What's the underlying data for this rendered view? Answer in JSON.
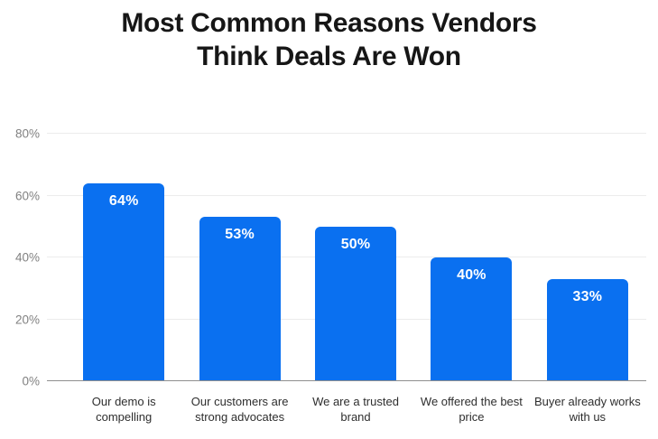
{
  "chart_data": {
    "type": "bar",
    "title": "Most Common Reasons Vendors Think Deals Are Won",
    "title_lines": [
      "Most Common Reasons Vendors",
      "Think Deals Are Won"
    ],
    "categories": [
      "Our demo is compelling",
      "Our customers are strong advocates",
      "We are a trusted brand",
      "We offered the best price",
      "Buyer already works with us"
    ],
    "category_lines": [
      [
        "Our demo is",
        "compelling"
      ],
      [
        "Our customers are",
        "strong advocates"
      ],
      [
        "We are a trusted",
        "brand"
      ],
      [
        "We offered the best",
        "price"
      ],
      [
        "Buyer already works",
        "with us"
      ]
    ],
    "values": [
      64,
      53,
      50,
      40,
      33
    ],
    "bar_labels": [
      "64%",
      "53%",
      "50%",
      "40%",
      "33%"
    ],
    "unit": "%",
    "xlabel": "",
    "ylabel": "",
    "ylim": [
      0,
      80
    ],
    "ytick_values": [
      0,
      20,
      40,
      60,
      80
    ],
    "ytick_labels": [
      "0%",
      "20%",
      "40%",
      "60%",
      "80%"
    ],
    "grid": true,
    "legend": false,
    "layout": {
      "legend_position": "none",
      "bar_label_position": "inside-top"
    },
    "colors": {
      "bar": "#0a70f0",
      "bar_label": "#ffffff",
      "gridline": "#ececec",
      "axis_line": "#8f8f8f",
      "ytick_text": "#818181",
      "xtick_text": "#2e2e2e",
      "title_text": "#161616",
      "background": "#ffffff"
    }
  }
}
